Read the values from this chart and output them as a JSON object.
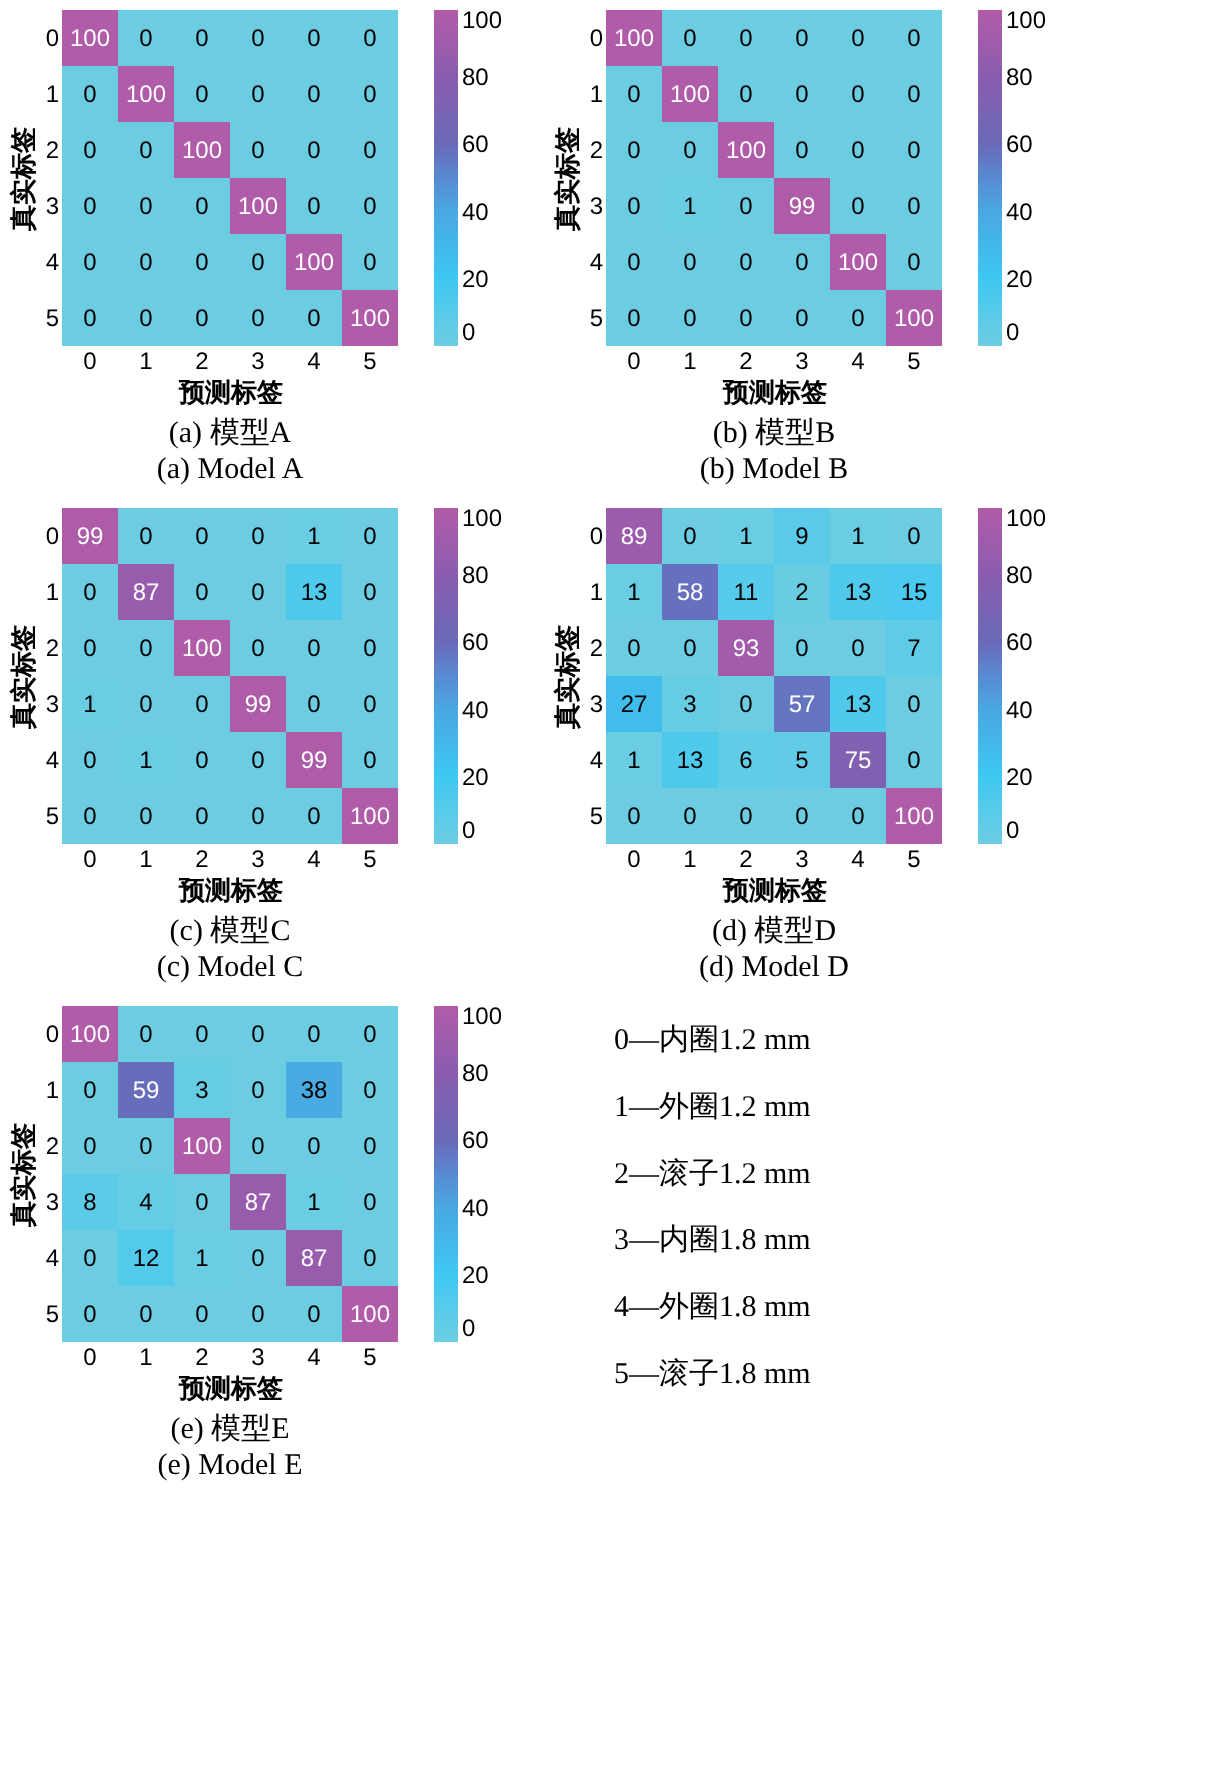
{
  "chart_data": [
    {
      "type": "heatmap",
      "title": "(a) 模型A",
      "subtitle": "(a) Model A",
      "xlabel": "预测标签",
      "ylabel": "真实标签",
      "categories": [
        "0",
        "1",
        "2",
        "3",
        "4",
        "5"
      ],
      "y_categories": [
        "0",
        "1",
        "2",
        "3",
        "4",
        "5"
      ],
      "clim": [
        0,
        100
      ],
      "cticks": [
        0,
        20,
        40,
        60,
        80,
        100
      ],
      "data_labels": true,
      "cells": [
        [
          100,
          0,
          0,
          0,
          0,
          0
        ],
        [
          0,
          100,
          0,
          0,
          0,
          0
        ],
        [
          0,
          0,
          100,
          0,
          0,
          0
        ],
        [
          0,
          0,
          0,
          100,
          0,
          0
        ],
        [
          0,
          0,
          0,
          0,
          100,
          0
        ],
        [
          0,
          0,
          0,
          0,
          0,
          100
        ]
      ]
    },
    {
      "type": "heatmap",
      "title": "(b) 模型B",
      "subtitle": "(b) Model B",
      "xlabel": "预测标签",
      "ylabel": "真实标签",
      "categories": [
        "0",
        "1",
        "2",
        "3",
        "4",
        "5"
      ],
      "y_categories": [
        "0",
        "1",
        "2",
        "3",
        "4",
        "5"
      ],
      "clim": [
        0,
        100
      ],
      "cticks": [
        0,
        20,
        40,
        60,
        80,
        100
      ],
      "data_labels": true,
      "cells": [
        [
          100,
          0,
          0,
          0,
          0,
          0
        ],
        [
          0,
          100,
          0,
          0,
          0,
          0
        ],
        [
          0,
          0,
          100,
          0,
          0,
          0
        ],
        [
          0,
          1,
          0,
          99,
          0,
          0
        ],
        [
          0,
          0,
          0,
          0,
          100,
          0
        ],
        [
          0,
          0,
          0,
          0,
          0,
          100
        ]
      ]
    },
    {
      "type": "heatmap",
      "title": "(c) 模型C",
      "subtitle": "(c) Model C",
      "xlabel": "预测标签",
      "ylabel": "真实标签",
      "categories": [
        "0",
        "1",
        "2",
        "3",
        "4",
        "5"
      ],
      "y_categories": [
        "0",
        "1",
        "2",
        "3",
        "4",
        "5"
      ],
      "clim": [
        0,
        100
      ],
      "cticks": [
        0,
        20,
        40,
        60,
        80,
        100
      ],
      "data_labels": true,
      "cells": [
        [
          99,
          0,
          0,
          0,
          1,
          0
        ],
        [
          0,
          87,
          0,
          0,
          13,
          0
        ],
        [
          0,
          0,
          100,
          0,
          0,
          0
        ],
        [
          1,
          0,
          0,
          99,
          0,
          0
        ],
        [
          0,
          1,
          0,
          0,
          99,
          0
        ],
        [
          0,
          0,
          0,
          0,
          0,
          100
        ]
      ]
    },
    {
      "type": "heatmap",
      "title": "(d) 模型D",
      "subtitle": "(d) Model D",
      "xlabel": "预测标签",
      "ylabel": "真实标签",
      "categories": [
        "0",
        "1",
        "2",
        "3",
        "4",
        "5"
      ],
      "y_categories": [
        "0",
        "1",
        "2",
        "3",
        "4",
        "5"
      ],
      "clim": [
        0,
        100
      ],
      "cticks": [
        0,
        20,
        40,
        60,
        80,
        100
      ],
      "data_labels": true,
      "cells": [
        [
          89,
          0,
          1,
          9,
          1,
          0
        ],
        [
          1,
          58,
          11,
          2,
          13,
          15
        ],
        [
          0,
          0,
          93,
          0,
          0,
          7
        ],
        [
          27,
          3,
          0,
          57,
          13,
          0
        ],
        [
          1,
          13,
          6,
          5,
          75,
          0
        ],
        [
          0,
          0,
          0,
          0,
          0,
          100
        ]
      ]
    },
    {
      "type": "heatmap",
      "title": "(e) 模型E",
      "subtitle": "(e) Model E",
      "xlabel": "预测标签",
      "ylabel": "真实标签",
      "categories": [
        "0",
        "1",
        "2",
        "3",
        "4",
        "5"
      ],
      "y_categories": [
        "0",
        "1",
        "2",
        "3",
        "4",
        "5"
      ],
      "clim": [
        0,
        100
      ],
      "cticks": [
        0,
        20,
        40,
        60,
        80,
        100
      ],
      "data_labels": true,
      "cells": [
        [
          100,
          0,
          0,
          0,
          0,
          0
        ],
        [
          0,
          59,
          3,
          0,
          38,
          0
        ],
        [
          0,
          0,
          100,
          0,
          0,
          0
        ],
        [
          8,
          4,
          0,
          87,
          1,
          0
        ],
        [
          0,
          12,
          1,
          0,
          87,
          0
        ],
        [
          0,
          0,
          0,
          0,
          0,
          100
        ]
      ]
    },
    {
      "type": "other",
      "annotations": [
        "0—内圈1.2 mm",
        "1—外圈1.2 mm",
        "2—滚子1.2 mm",
        "3—内圈1.8 mm",
        "4—外圈1.8 mm",
        "5—滚子1.8 mm"
      ]
    }
  ]
}
